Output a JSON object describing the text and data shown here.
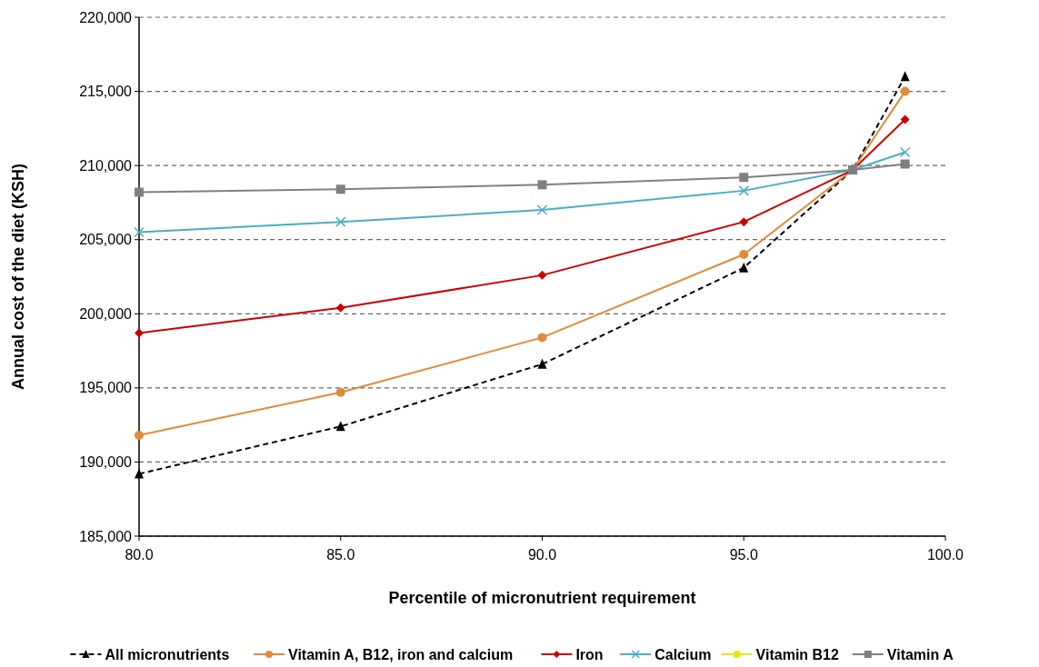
{
  "chart_data": {
    "type": "line",
    "xlabel": "Percentile of micronutrient requirement",
    "ylabel": "Annual cost of the diet (KSH)",
    "x": [
      80,
      85,
      90,
      95,
      97.7,
      99
    ],
    "xlim": [
      80,
      100
    ],
    "xticks": [
      {
        "value": 80,
        "label": "80.0"
      },
      {
        "value": 85,
        "label": "85.0"
      },
      {
        "value": 90,
        "label": "90.0"
      },
      {
        "value": 95,
        "label": "95.0"
      },
      {
        "value": 100,
        "label": "100.0"
      }
    ],
    "ylim": [
      185000,
      220000
    ],
    "yticks": [
      {
        "value": 185000,
        "label": "185,000"
      },
      {
        "value": 190000,
        "label": "190,000"
      },
      {
        "value": 195000,
        "label": "195,000"
      },
      {
        "value": 200000,
        "label": "200,000"
      },
      {
        "value": 205000,
        "label": "205,000"
      },
      {
        "value": 210000,
        "label": "210,000"
      },
      {
        "value": 215000,
        "label": "215,000"
      },
      {
        "value": 220000,
        "label": "220,000"
      }
    ],
    "grid": "y",
    "legend": "bottom",
    "series": [
      {
        "name": "All micronutrients",
        "color": "#000000",
        "marker": "triangle",
        "line_style": "dashed",
        "values": [
          189200,
          192400,
          196600,
          203100,
          209700,
          216000
        ]
      },
      {
        "name": "Vitamin A, B12, iron and calcium",
        "color": "#e08a3c",
        "marker": "circle",
        "line_style": "solid",
        "values": [
          191800,
          194700,
          198400,
          204000,
          209700,
          215000
        ]
      },
      {
        "name": "Iron",
        "color": "#cc0000",
        "marker": "diamond",
        "line_style": "solid",
        "values": [
          198700,
          200400,
          202600,
          206200,
          209700,
          213100
        ]
      },
      {
        "name": "Calcium",
        "color": "#4bacc6",
        "marker": "cross",
        "line_style": "solid",
        "values": [
          205500,
          206200,
          207000,
          208300,
          209700,
          210900
        ]
      },
      {
        "name": "Vitamin B12",
        "color": "#e6e600",
        "marker": "circle",
        "line_style": "solid",
        "values": [
          null,
          null,
          null,
          null,
          null,
          null
        ]
      },
      {
        "name": "Vitamin A",
        "color": "#808080",
        "marker": "square",
        "line_style": "solid",
        "values": [
          208200,
          208400,
          208700,
          209200,
          209700,
          210100
        ]
      }
    ]
  }
}
